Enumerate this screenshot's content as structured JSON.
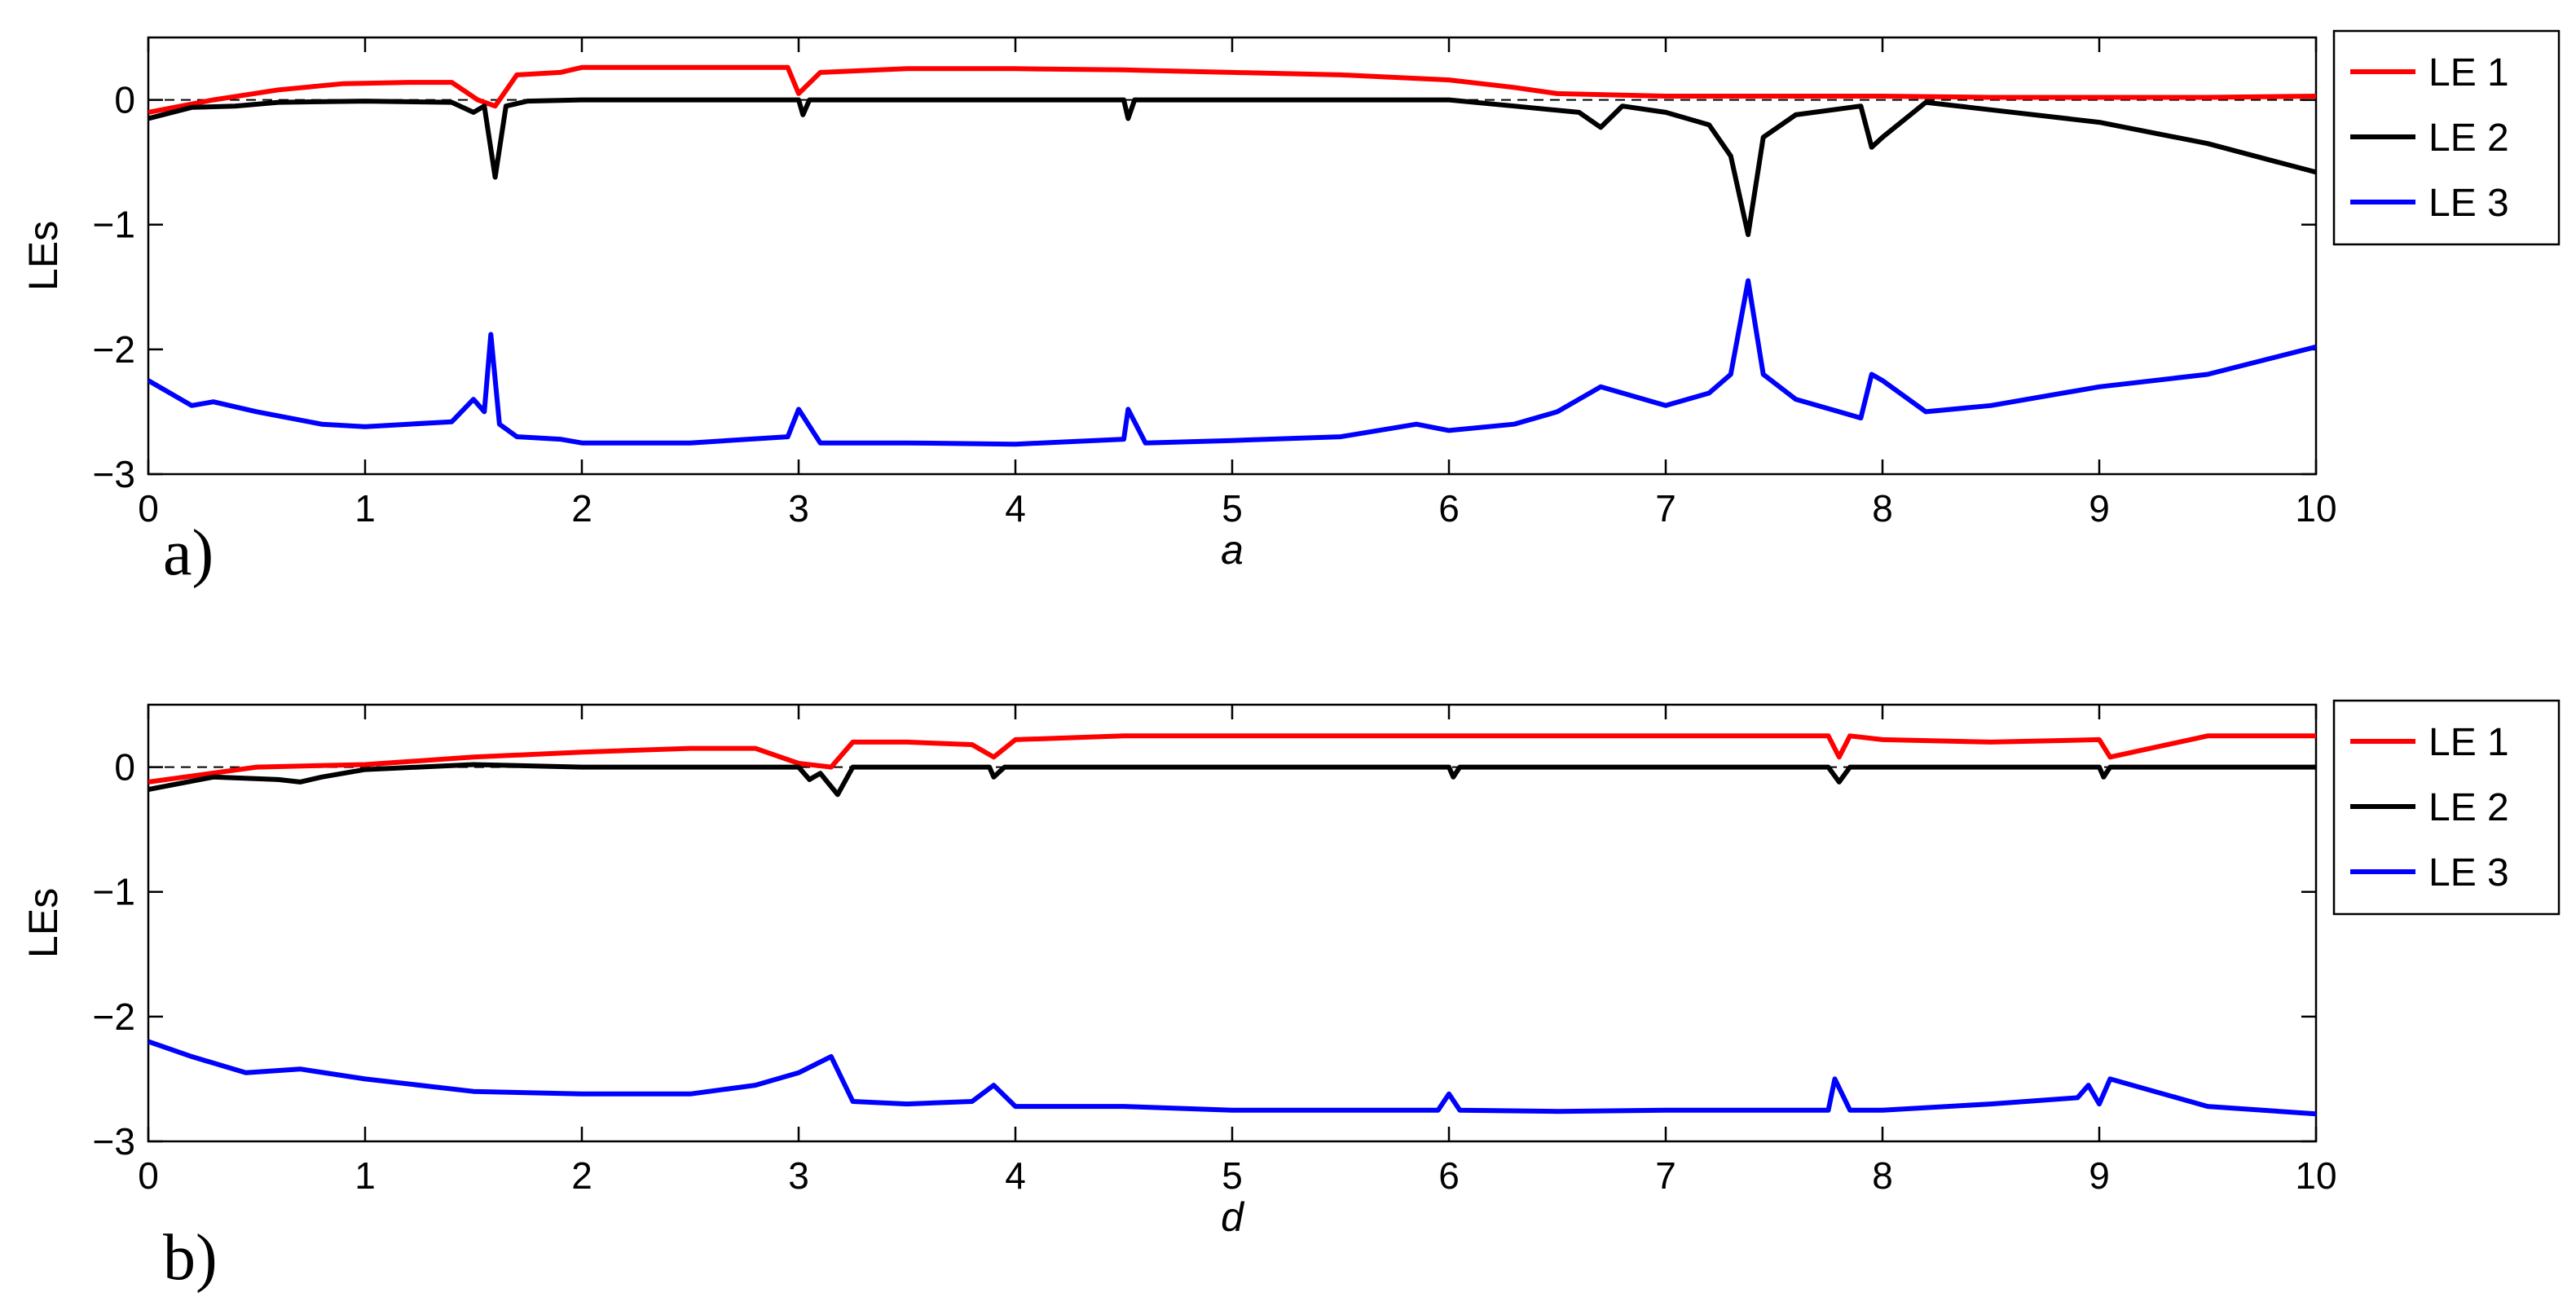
{
  "chart_data": [
    {
      "type": "line",
      "panel_label": "a)",
      "xlabel": "a",
      "ylabel": "LEs",
      "xlim": [
        0,
        10
      ],
      "ylim": [
        -3,
        0.5
      ],
      "xticks": [
        "0",
        "1",
        "2",
        "3",
        "4",
        "5",
        "6",
        "7",
        "8",
        "9",
        "10"
      ],
      "yticks": [
        "-3",
        "-2",
        "-1",
        "0"
      ],
      "grid": false,
      "zero_line": "dashed",
      "legend_position": "outside-right",
      "series": [
        {
          "name": "LE 1",
          "color": "#ff0000",
          "x": [
            0,
            0.3,
            0.6,
            0.9,
            1.2,
            1.4,
            1.52,
            1.6,
            1.7,
            1.9,
            2.0,
            2.5,
            2.95,
            3.0,
            3.1,
            3.5,
            4.0,
            4.5,
            5.0,
            5.5,
            6.0,
            6.3,
            6.5,
            7.0,
            7.5,
            8.0,
            8.5,
            9.0,
            9.5,
            10.0
          ],
          "y": [
            -0.1,
            0.0,
            0.08,
            0.13,
            0.14,
            0.14,
            0.0,
            -0.05,
            0.2,
            0.22,
            0.26,
            0.26,
            0.26,
            0.05,
            0.22,
            0.25,
            0.25,
            0.24,
            0.22,
            0.2,
            0.16,
            0.1,
            0.05,
            0.03,
            0.03,
            0.03,
            0.02,
            0.02,
            0.02,
            0.03
          ]
        },
        {
          "name": "LE 2",
          "color": "#000000",
          "x": [
            0,
            0.2,
            0.4,
            0.6,
            1.0,
            1.4,
            1.5,
            1.55,
            1.6,
            1.65,
            1.75,
            2.0,
            3.0,
            3.02,
            3.05,
            3.1,
            4.0,
            4.5,
            4.52,
            4.55,
            5.0,
            6.0,
            6.3,
            6.6,
            6.7,
            6.8,
            7.0,
            7.2,
            7.3,
            7.38,
            7.45,
            7.6,
            7.9,
            7.95,
            8.0,
            8.2,
            8.5,
            9.0,
            9.5,
            10.0
          ],
          "y": [
            -0.15,
            -0.06,
            -0.05,
            -0.02,
            -0.01,
            -0.02,
            -0.1,
            -0.05,
            -0.62,
            -0.05,
            -0.01,
            0.0,
            0.0,
            -0.12,
            0.0,
            0.0,
            0.0,
            0.0,
            -0.15,
            0.0,
            0.0,
            0.0,
            -0.05,
            -0.1,
            -0.22,
            -0.05,
            -0.1,
            -0.2,
            -0.45,
            -1.08,
            -0.3,
            -0.12,
            -0.05,
            -0.38,
            -0.3,
            -0.02,
            -0.08,
            -0.18,
            -0.35,
            -0.58
          ]
        },
        {
          "name": "LE 3",
          "color": "#0000ff",
          "x": [
            0,
            0.2,
            0.3,
            0.5,
            0.8,
            1.0,
            1.2,
            1.4,
            1.5,
            1.55,
            1.58,
            1.62,
            1.7,
            1.9,
            2.0,
            2.5,
            2.95,
            3.0,
            3.1,
            3.5,
            4.0,
            4.5,
            4.52,
            4.6,
            5.0,
            5.5,
            5.85,
            6.0,
            6.3,
            6.5,
            6.7,
            7.0,
            7.2,
            7.3,
            7.38,
            7.45,
            7.6,
            7.8,
            7.9,
            7.95,
            8.0,
            8.2,
            8.5,
            9.0,
            9.5,
            10.0
          ],
          "y": [
            -2.25,
            -2.45,
            -2.42,
            -2.5,
            -2.6,
            -2.62,
            -2.6,
            -2.58,
            -2.4,
            -2.5,
            -1.88,
            -2.6,
            -2.7,
            -2.72,
            -2.75,
            -2.75,
            -2.7,
            -2.48,
            -2.75,
            -2.75,
            -2.76,
            -2.72,
            -2.48,
            -2.75,
            -2.73,
            -2.7,
            -2.6,
            -2.65,
            -2.6,
            -2.5,
            -2.3,
            -2.45,
            -2.35,
            -2.2,
            -1.45,
            -2.2,
            -2.4,
            -2.5,
            -2.55,
            -2.2,
            -2.25,
            -2.5,
            -2.45,
            -2.3,
            -2.2,
            -1.98
          ]
        }
      ]
    },
    {
      "type": "line",
      "panel_label": "b)",
      "xlabel": "d",
      "ylabel": "LEs",
      "xlim": [
        0,
        10
      ],
      "ylim": [
        -3,
        0.5
      ],
      "xticks": [
        "0",
        "1",
        "2",
        "3",
        "4",
        "5",
        "6",
        "7",
        "8",
        "9",
        "10"
      ],
      "yticks": [
        "-3",
        "-2",
        "-1",
        "0"
      ],
      "grid": false,
      "zero_line": "dashed",
      "legend_position": "outside-right",
      "series": [
        {
          "name": "LE 1",
          "color": "#ff0000",
          "x": [
            0,
            0.5,
            1.0,
            1.5,
            2.0,
            2.5,
            2.8,
            3.0,
            3.15,
            3.25,
            3.5,
            3.8,
            3.9,
            4.0,
            4.5,
            5.0,
            5.5,
            6.0,
            6.5,
            7.0,
            7.5,
            7.75,
            7.8,
            7.85,
            8.0,
            8.5,
            9.0,
            9.05,
            9.5,
            10.0
          ],
          "y": [
            -0.12,
            0.0,
            0.02,
            0.08,
            0.12,
            0.15,
            0.15,
            0.03,
            0.0,
            0.2,
            0.2,
            0.18,
            0.08,
            0.22,
            0.25,
            0.25,
            0.25,
            0.25,
            0.25,
            0.25,
            0.25,
            0.25,
            0.08,
            0.25,
            0.22,
            0.2,
            0.22,
            0.08,
            0.25,
            0.25
          ]
        },
        {
          "name": "LE 2",
          "color": "#000000",
          "x": [
            0,
            0.3,
            0.6,
            0.7,
            0.8,
            1.0,
            1.5,
            2.0,
            2.5,
            3.0,
            3.05,
            3.1,
            3.18,
            3.25,
            3.5,
            3.88,
            3.9,
            3.95,
            4.5,
            5.0,
            5.5,
            6.0,
            6.02,
            6.05,
            6.5,
            7.0,
            7.5,
            7.75,
            7.8,
            7.85,
            8.5,
            9.0,
            9.02,
            9.05,
            9.5,
            10.0
          ],
          "y": [
            -0.18,
            -0.08,
            -0.1,
            -0.12,
            -0.08,
            -0.02,
            0.02,
            0.0,
            0.0,
            0.0,
            -0.1,
            -0.05,
            -0.22,
            0.0,
            0.0,
            0.0,
            -0.08,
            0.0,
            0.0,
            0.0,
            0.0,
            0.0,
            -0.08,
            0.0,
            0.0,
            0.0,
            0.0,
            0.0,
            -0.12,
            0.0,
            0.0,
            0.0,
            -0.08,
            0.0,
            0.0,
            0.0
          ]
        },
        {
          "name": "LE 3",
          "color": "#0000ff",
          "x": [
            0,
            0.2,
            0.45,
            0.7,
            1.0,
            1.5,
            2.0,
            2.5,
            2.8,
            3.0,
            3.15,
            3.25,
            3.5,
            3.8,
            3.9,
            4.0,
            4.5,
            5.0,
            5.5,
            5.95,
            6.0,
            6.05,
            6.5,
            7.0,
            7.5,
            7.75,
            7.78,
            7.85,
            8.0,
            8.5,
            8.9,
            8.95,
            9.0,
            9.05,
            9.5,
            10.0
          ],
          "y": [
            -2.2,
            -2.32,
            -2.45,
            -2.42,
            -2.5,
            -2.6,
            -2.62,
            -2.62,
            -2.55,
            -2.45,
            -2.32,
            -2.68,
            -2.7,
            -2.68,
            -2.55,
            -2.72,
            -2.72,
            -2.75,
            -2.75,
            -2.75,
            -2.62,
            -2.75,
            -2.76,
            -2.75,
            -2.75,
            -2.75,
            -2.5,
            -2.75,
            -2.75,
            -2.7,
            -2.65,
            -2.55,
            -2.7,
            -2.5,
            -2.72,
            -2.78
          ]
        }
      ]
    }
  ]
}
